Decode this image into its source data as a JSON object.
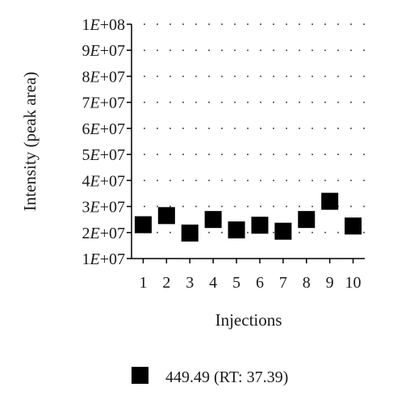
{
  "chart_data": {
    "type": "scatter",
    "title": "",
    "xlabel": "Injections",
    "ylabel": "Intensity (peak area)",
    "x": [
      1,
      2,
      3,
      4,
      5,
      6,
      7,
      8,
      9,
      10
    ],
    "xlim": [
      0.5,
      10.5
    ],
    "ylim": [
      10000000,
      100000000
    ],
    "x_tick_labels": [
      "1",
      "2",
      "3",
      "4",
      "5",
      "6",
      "7",
      "8",
      "9",
      "10"
    ],
    "y_ticks": [
      10000000,
      20000000,
      30000000,
      40000000,
      50000000,
      60000000,
      70000000,
      80000000,
      90000000,
      100000000
    ],
    "y_tick_labels": [
      {
        "mant": "1",
        "exp": "+07"
      },
      {
        "mant": "2",
        "exp": "+07"
      },
      {
        "mant": "3",
        "exp": "+07"
      },
      {
        "mant": "4",
        "exp": "+07"
      },
      {
        "mant": "5",
        "exp": "+07"
      },
      {
        "mant": "6",
        "exp": "+07"
      },
      {
        "mant": "7",
        "exp": "+07"
      },
      {
        "mant": "8",
        "exp": "+07"
      },
      {
        "mant": "9",
        "exp": "+07"
      },
      {
        "mant": "1",
        "exp": "+08"
      }
    ],
    "grid": "dotted",
    "legend_position": "bottom-center",
    "series": [
      {
        "name": "449.49 (RT: 37.39)",
        "marker": "square",
        "color": "#000000",
        "values": [
          23000000,
          26500000,
          19800000,
          25000000,
          21000000,
          22800000,
          20500000,
          25000000,
          32000000,
          22500000
        ]
      }
    ]
  }
}
